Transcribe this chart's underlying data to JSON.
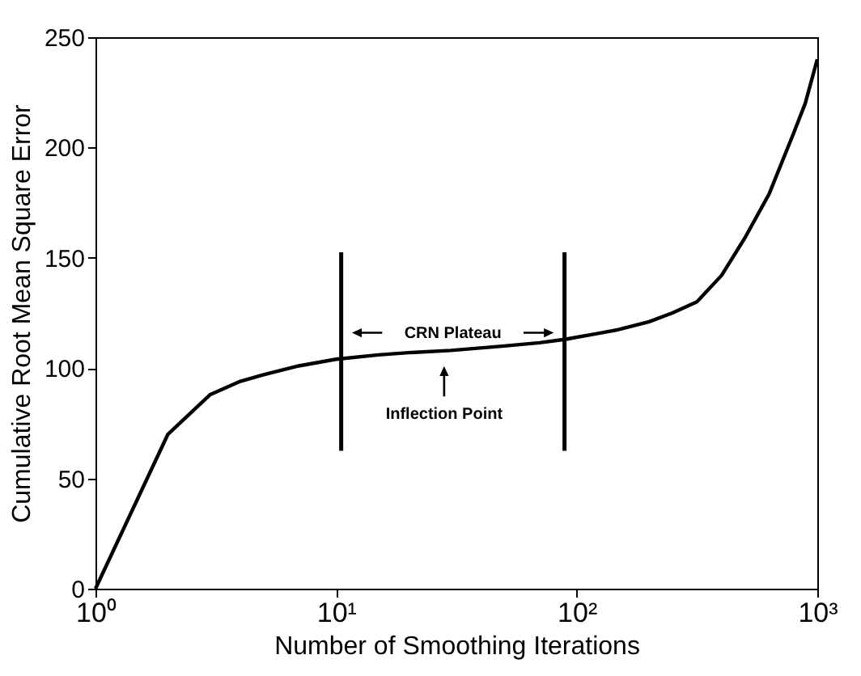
{
  "chart_data": {
    "type": "line",
    "xlabel": "Number of Smoothing Iterations",
    "ylabel": "Cumulative Root Mean Square Error",
    "x": [
      1,
      2,
      3,
      4,
      5,
      7,
      10,
      15,
      20,
      30,
      50,
      70,
      89,
      120,
      150,
      200,
      250,
      316,
      400,
      500,
      631,
      794,
      891,
      1000
    ],
    "series": [
      {
        "color": "#000000",
        "values": [
          0,
          70,
          88,
          94,
          97,
          101,
          104,
          106,
          107,
          108,
          110,
          111.5,
          113,
          115.5,
          117.5,
          121,
          125,
          130,
          142,
          159,
          179,
          206,
          220,
          240
        ]
      }
    ],
    "log": "x",
    "xlim": [
      1,
      1000
    ],
    "ylim": [
      0,
      250
    ],
    "xticks": [
      {
        "value": 1,
        "label": "10⁰"
      },
      {
        "value": 10,
        "label": "10¹"
      },
      {
        "value": 100,
        "label": "10²"
      },
      {
        "value": 1000,
        "label": "10³"
      }
    ],
    "yticks": [
      0,
      50,
      100,
      150,
      200,
      250
    ],
    "grid": false,
    "marker": "none",
    "line_style": "solid",
    "ref_lines": [
      {
        "axis": "x",
        "value": 10.5,
        "label": null,
        "color": "#000000"
      },
      {
        "axis": "x",
        "value": 89,
        "label": null,
        "color": "#000000"
      }
    ],
    "annotations": [
      "CRN Plateau",
      "Inflection Point"
    ]
  }
}
